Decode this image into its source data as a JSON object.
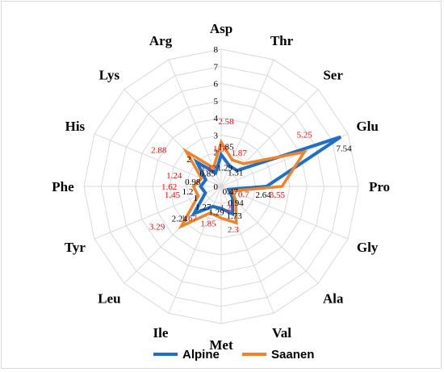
{
  "chart_data": {
    "type": "radar",
    "categories": [
      "Asp",
      "Thr",
      "Ser",
      "Glu",
      "Pro",
      "Gly",
      "Ala",
      "Val",
      "Met",
      "Ile",
      "Leu",
      "Tyr",
      "Phe",
      "His",
      "Lys",
      "Arg"
    ],
    "rlim": [
      0,
      8
    ],
    "ticks": [
      "0",
      "1",
      "2",
      "3",
      "4",
      "5",
      "6",
      "7",
      "8"
    ],
    "grid": true,
    "legend_position": "bottom",
    "series": [
      {
        "name": "Alpine",
        "color": "#1f6fc5",
        "values": [
          1.85,
          1.29,
          1.31,
          7.54,
          2.64,
          0.47,
          0.94,
          1.73,
          1.29,
          1.27,
          2.24,
          1,
          1.2,
          0.98,
          2,
          0.85
        ]
      },
      {
        "name": "Saanen",
        "color": "#f0832a",
        "values": [
          2.58,
          1.67,
          1.87,
          5.25,
          3.55,
          0.7,
          1.21,
          2.3,
          1.85,
          1.67,
          3.29,
          1.45,
          1.62,
          1.24,
          2.88,
          1.17
        ]
      }
    ]
  }
}
